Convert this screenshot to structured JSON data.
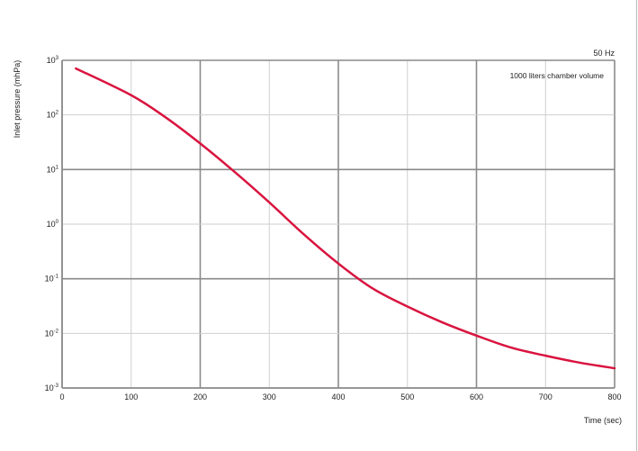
{
  "chart_data": {
    "type": "line",
    "title": "",
    "xlabel": "Time (sec)",
    "ylabel": "Inlet pressure (mhPa)",
    "annotations": [
      "50 Hz",
      "1000 liters chamber volume"
    ],
    "xlim": [
      0,
      800
    ],
    "ylim": [
      0.001,
      1000
    ],
    "yscale": "log",
    "grid": true,
    "x_ticks": [
      "0",
      "100",
      "200",
      "300",
      "400",
      "500",
      "600",
      "700",
      "800"
    ],
    "y_ticks": [
      {
        "base": "10",
        "exp": "3"
      },
      {
        "base": "10",
        "exp": "2"
      },
      {
        "base": "10",
        "exp": "1"
      },
      {
        "base": "10",
        "exp": "0"
      },
      {
        "base": "10",
        "exp": "-1"
      },
      {
        "base": "10",
        "exp": "-2"
      },
      {
        "base": "10",
        "exp": "-3"
      }
    ],
    "series": [
      {
        "color": "#d9143f",
        "x": [
          20,
          100,
          150,
          200,
          250,
          300,
          350,
          400,
          450,
          500,
          550,
          600,
          650,
          700,
          750,
          800
        ],
        "y": [
          708,
          230,
          90,
          30,
          9,
          2.5,
          0.65,
          0.19,
          0.066,
          0.031,
          0.016,
          0.0091,
          0.0055,
          0.0039,
          0.0029,
          0.0023
        ]
      }
    ]
  }
}
